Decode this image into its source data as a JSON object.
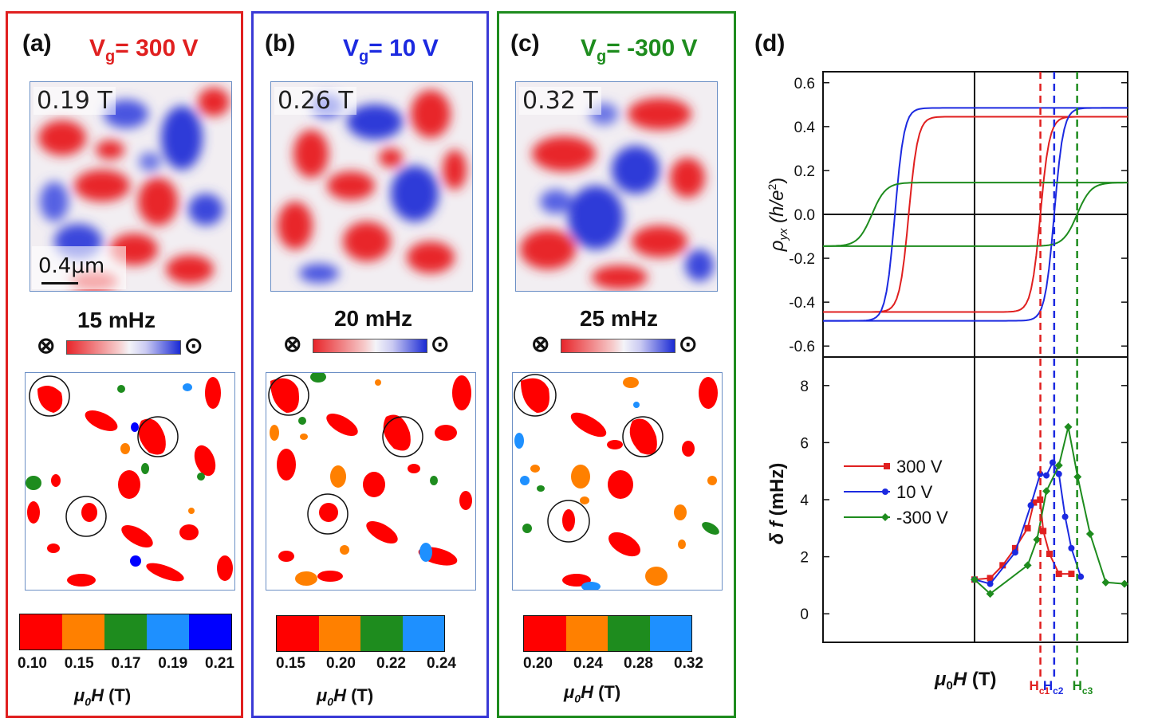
{
  "panels": [
    {
      "label": "(a)",
      "vg_prefix": "V",
      "vg_sub": "g",
      "vg_value": "= 300 V",
      "vg_color": "#e02020",
      "field": "0.19 T",
      "scale_label": "0.4μm",
      "freq": "15 mHz",
      "legend_colors": [
        "#ff0000",
        "#ff8000",
        "#1e8c1e",
        "#1e90ff",
        "#0000ff"
      ],
      "legend_ticks": [
        "0.10",
        "0.15",
        "0.17",
        "0.19",
        "0.21"
      ],
      "axis_label": "μ0H (T)"
    },
    {
      "label": "(b)",
      "vg_prefix": "V",
      "vg_sub": "g",
      "vg_value": "= 10 V",
      "vg_color": "#1c2ae0",
      "field": "0.26 T",
      "freq": "20 mHz",
      "legend_colors": [
        "#ff0000",
        "#ff8000",
        "#1e8c1e",
        "#1e90ff"
      ],
      "legend_ticks": [
        "0.15",
        "0.20",
        "0.22",
        "0.24"
      ],
      "axis_label": "μ0H (T)"
    },
    {
      "label": "(c)",
      "vg_prefix": "V",
      "vg_sub": "g",
      "vg_value": "= -300 V",
      "vg_color": "#1e8c1e",
      "field": "0.32 T",
      "freq": "25 mHz",
      "legend_colors": [
        "#ff0000",
        "#ff8000",
        "#1e8c1e",
        "#1e90ff"
      ],
      "legend_ticks": [
        "0.20",
        "0.24",
        "0.28",
        "0.32"
      ],
      "axis_label": "μ0H (T)"
    }
  ],
  "chart_data": [
    {
      "type": "line",
      "label": "(d)",
      "title": "",
      "ylabel": "ρyx (h/e2)",
      "ylim": [
        -0.65,
        0.65
      ],
      "yticks": [
        "0.6",
        "0.4",
        "0.2",
        "0.0",
        "-0.2",
        "-0.4",
        "-0.6"
      ],
      "series": [
        {
          "name": "300 V",
          "color": "#e02020",
          "saturation": 0.445,
          "coercive_fraction": 0.43
        },
        {
          "name": "10 V",
          "color": "#1c2ae0",
          "saturation": 0.485,
          "coercive_fraction": 0.52
        },
        {
          "name": "-300 V",
          "color": "#1e8c1e",
          "saturation": 0.145,
          "coercive_fraction": 0.67
        }
      ]
    },
    {
      "type": "line",
      "label": "",
      "ylabel": "δ f (mHz)",
      "ylim": [
        -1,
        9
      ],
      "yticks": [
        "8",
        "6",
        "4",
        "2",
        "0"
      ],
      "xlabel": "μ0H (T)",
      "series": [
        {
          "name": "300 V",
          "color": "#e02020",
          "marker": "square",
          "x": [
            0,
            0.05,
            0.09,
            0.13,
            0.17,
            0.19,
            0.21,
            0.22,
            0.24,
            0.27,
            0.31
          ],
          "y": [
            1.2,
            1.25,
            1.7,
            2.3,
            3.0,
            3.9,
            4.0,
            2.9,
            2.1,
            1.4,
            1.4
          ]
        },
        {
          "name": "10 V",
          "color": "#1c2ae0",
          "marker": "circle",
          "x": [
            0,
            0.05,
            0.13,
            0.18,
            0.21,
            0.23,
            0.25,
            0.27,
            0.29,
            0.31,
            0.34
          ],
          "y": [
            1.2,
            1.05,
            2.15,
            3.8,
            4.9,
            4.85,
            5.3,
            4.9,
            3.4,
            2.3,
            1.3
          ]
        },
        {
          "name": "-300 V",
          "color": "#1e8c1e",
          "marker": "diamond",
          "x": [
            0,
            0.05,
            0.17,
            0.2,
            0.23,
            0.27,
            0.3,
            0.33,
            0.37,
            0.42,
            0.48
          ],
          "y": [
            1.2,
            0.7,
            1.7,
            2.6,
            4.3,
            5.2,
            6.55,
            4.8,
            2.8,
            1.1,
            1.05
          ]
        }
      ],
      "coercive_markers": [
        {
          "label": "Hc1",
          "base": "H",
          "sub": "c1",
          "color": "#e02020"
        },
        {
          "label": "Hc2",
          "base": "H",
          "sub": "c2",
          "color": "#1c2ae0"
        },
        {
          "label": "Hc3",
          "base": "H",
          "sub": "c3",
          "color": "#1e8c1e"
        }
      ]
    }
  ],
  "axis_text": {
    "mu": "μ",
    "zero_sub": "0",
    "H": "H",
    "units": " (T)",
    "rho": "ρ",
    "yx": "yx",
    "he2": "(h/e",
    "two": "2",
    ")": ")",
    "delta": "δ",
    "f": " f",
    "mhz": " (mHz)"
  }
}
